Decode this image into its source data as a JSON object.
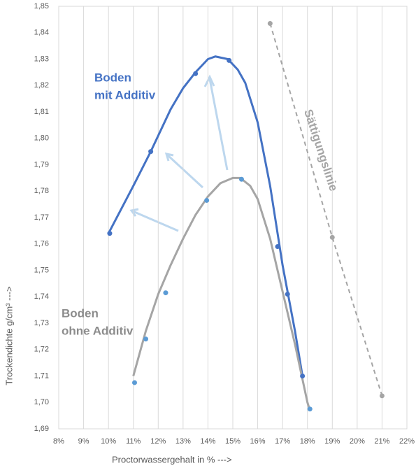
{
  "chart_data": {
    "type": "scatter",
    "x_label": "Proctorwassergehalt in %   --->",
    "y_label": "Trockendichte   g/cm³   --->",
    "xlim": [
      8,
      22
    ],
    "ylim": [
      1.69,
      1.85
    ],
    "grid": "x",
    "xticks": [
      {
        "value": 8,
        "label": "8%"
      },
      {
        "value": 9,
        "label": "9%"
      },
      {
        "value": 10,
        "label": "10%"
      },
      {
        "value": 11,
        "label": "11%"
      },
      {
        "value": 12,
        "label": "12%"
      },
      {
        "value": 13,
        "label": "13%"
      },
      {
        "value": 14,
        "label": "14%"
      },
      {
        "value": 15,
        "label": "15%"
      },
      {
        "value": 16,
        "label": "16%"
      },
      {
        "value": 17,
        "label": "17%"
      },
      {
        "value": 18,
        "label": "18%"
      },
      {
        "value": 19,
        "label": "19%"
      },
      {
        "value": 20,
        "label": "20%"
      },
      {
        "value": 21,
        "label": "21%"
      },
      {
        "value": 22,
        "label": "22%"
      }
    ],
    "yticks": [
      {
        "value": 1.69,
        "label": "1,69"
      },
      {
        "value": 1.7,
        "label": "1,70"
      },
      {
        "value": 1.71,
        "label": "1,71"
      },
      {
        "value": 1.72,
        "label": "1,72"
      },
      {
        "value": 1.73,
        "label": "1,73"
      },
      {
        "value": 1.74,
        "label": "1,74"
      },
      {
        "value": 1.75,
        "label": "1,75"
      },
      {
        "value": 1.76,
        "label": "1,76"
      },
      {
        "value": 1.77,
        "label": "1,77"
      },
      {
        "value": 1.78,
        "label": "1,78"
      },
      {
        "value": 1.79,
        "label": "1,79"
      },
      {
        "value": 1.8,
        "label": "1,80"
      },
      {
        "value": 1.81,
        "label": "1,81"
      },
      {
        "value": 1.82,
        "label": "1,82"
      },
      {
        "value": 1.83,
        "label": "1,83"
      },
      {
        "value": 1.84,
        "label": "1,84"
      },
      {
        "value": 1.85,
        "label": "1,85"
      }
    ],
    "series": [
      {
        "mode": "line",
        "color": "#4472c4",
        "dash": false,
        "x": [
          10.0,
          11.0,
          11.7,
          12.5,
          13.0,
          13.5,
          14.0,
          14.3,
          14.8,
          15.2,
          15.5,
          16.0,
          16.5,
          17.0,
          17.5,
          17.8
        ],
        "values": [
          1.764,
          1.782,
          1.795,
          1.811,
          1.819,
          1.825,
          1.83,
          1.831,
          1.83,
          1.826,
          1.821,
          1.806,
          1.782,
          1.752,
          1.727,
          1.71
        ]
      },
      {
        "mode": "line",
        "color": "#a5a5a5",
        "dash": false,
        "x": [
          11.0,
          11.5,
          12.0,
          12.5,
          13.0,
          13.5,
          14.0,
          14.5,
          15.0,
          15.3,
          15.7,
          16.0,
          16.5,
          17.0,
          17.5,
          18.0,
          18.1
        ],
        "values": [
          1.71,
          1.727,
          1.741,
          1.752,
          1.762,
          1.771,
          1.778,
          1.783,
          1.785,
          1.785,
          1.782,
          1.777,
          1.762,
          1.742,
          1.722,
          1.7,
          1.697
        ]
      },
      {
        "mode": "markers",
        "color": "#4472c4",
        "dash": false,
        "x": [
          10.05,
          11.7,
          13.5,
          14.85,
          16.8,
          17.2,
          17.8
        ],
        "values": [
          1.764,
          1.795,
          1.8245,
          1.8295,
          1.759,
          1.741,
          1.71
        ]
      },
      {
        "mode": "markers",
        "color": "#5b9bd5",
        "dash": false,
        "x": [
          11.05,
          11.5,
          12.3,
          13.95,
          15.35,
          18.1
        ],
        "values": [
          1.7075,
          1.724,
          1.7415,
          1.7765,
          1.7845,
          1.6975
        ]
      },
      {
        "mode": "line+markers",
        "color": "#a5a5a5",
        "dash": true,
        "x": [
          16.5,
          19.0,
          21.0
        ],
        "values": [
          1.8435,
          1.7625,
          1.7025
        ]
      }
    ],
    "annotations": [
      {
        "text": "Boden",
        "color": "#4472c4"
      },
      {
        "text": "mit Additiv",
        "color": "#4472c4"
      },
      {
        "text": "Boden",
        "color": "#8c8c8c"
      },
      {
        "text": "ohne Additiv",
        "color": "#8c8c8c"
      },
      {
        "text": "Sättigungslinie",
        "color": "#a5a5a5"
      }
    ]
  }
}
